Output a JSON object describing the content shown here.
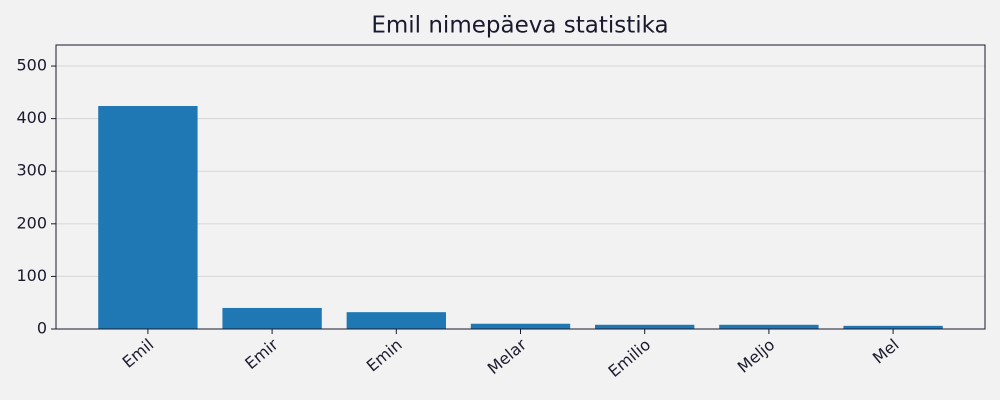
{
  "chart_data": {
    "type": "bar",
    "title": "Emil nimepäeva statistika",
    "categories": [
      "Emil",
      "Emir",
      "Emin",
      "Melar",
      "Emilio",
      "Meljo",
      "Mel"
    ],
    "values": [
      424,
      40,
      32,
      10,
      8,
      8,
      6
    ],
    "color": "#1f77b4",
    "ylim": [
      0,
      540
    ],
    "yticks": [
      0,
      100,
      200,
      300,
      400,
      500
    ],
    "grid": true
  }
}
